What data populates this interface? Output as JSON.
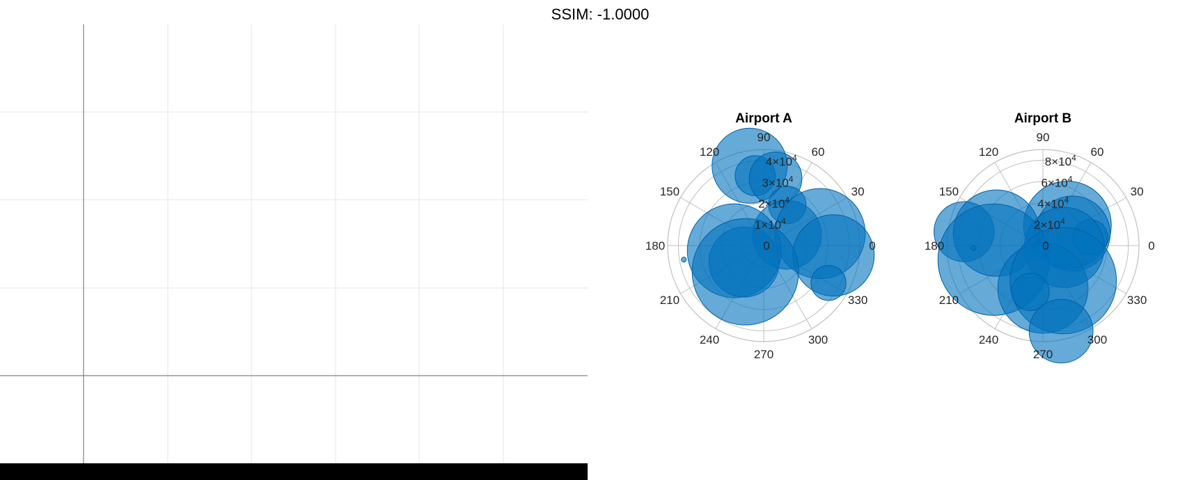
{
  "figure": {
    "suptitle": "SSIM: -1.0000"
  },
  "colors": {
    "bubble_fill": "#0072BD",
    "bubble_edge": "#0060A8",
    "polar_grid": "#BFBFBF",
    "axis_line": "#808080",
    "cartesian_grid": "#E6E6E6",
    "bottom_bar": "#000000"
  },
  "left_panel": {
    "type": "empty-cartesian-axes",
    "grid": true
  },
  "chart_data": [
    {
      "type": "polar-bubble",
      "title": "Airport A",
      "theta_ticks": [
        "0",
        "30",
        "60",
        "90",
        "120",
        "150",
        "180",
        "210",
        "240",
        "270",
        "300",
        "330"
      ],
      "r_ticks": [
        {
          "base": "0",
          "exp": ""
        },
        {
          "base": "1×10",
          "exp": "4"
        },
        {
          "base": "2×10",
          "exp": "4"
        },
        {
          "base": "3×10",
          "exp": "4"
        },
        {
          "base": "4×10",
          "exp": "4"
        }
      ],
      "r_tick_values": [
        0,
        10000,
        20000,
        30000,
        40000
      ],
      "rlim": [
        0,
        45000
      ],
      "grid": true,
      "points": [
        {
          "theta": 100,
          "r": 38000,
          "size": 6
        },
        {
          "theta": 97,
          "r": 33000,
          "size": 3.2
        },
        {
          "theta": 80,
          "r": 32000,
          "size": 4.2
        },
        {
          "theta": 60,
          "r": 22000,
          "size": 3
        },
        {
          "theta": 25,
          "r": 12000,
          "size": 5.5
        },
        {
          "theta": 12,
          "r": 27000,
          "size": 7.2
        },
        {
          "theta": 352,
          "r": 33000,
          "size": 6.5
        },
        {
          "theta": 330,
          "r": 35000,
          "size": 2.8
        },
        {
          "theta": 190,
          "r": 14000,
          "size": 7.5
        },
        {
          "theta": 220,
          "r": 12000,
          "size": 5.6
        },
        {
          "theta": 235,
          "r": 15000,
          "size": 8.5
        },
        {
          "theta": 190,
          "r": 38000,
          "size": 0.4
        }
      ]
    },
    {
      "type": "polar-bubble",
      "title": "Airport B",
      "theta_ticks": [
        "0",
        "30",
        "60",
        "90",
        "120",
        "150",
        "180",
        "210",
        "240",
        "270",
        "300",
        "330"
      ],
      "r_ticks": [
        {
          "base": "0",
          "exp": ""
        },
        {
          "base": "2×10",
          "exp": "4"
        },
        {
          "base": "4×10",
          "exp": "4"
        },
        {
          "base": "6×10",
          "exp": "4"
        },
        {
          "base": "8×10",
          "exp": "4"
        }
      ],
      "r_tick_values": [
        0,
        20000,
        40000,
        60000,
        80000
      ],
      "rlim": [
        0,
        90000
      ],
      "grid": true,
      "points": [
        {
          "theta": 40,
          "r": 30000,
          "size": 7
        },
        {
          "theta": 22,
          "r": 30000,
          "size": 6
        },
        {
          "theta": 10,
          "r": 45000,
          "size": 2.8
        },
        {
          "theta": 355,
          "r": 20000,
          "size": 6.4
        },
        {
          "theta": 170,
          "r": 75000,
          "size": 4.8
        },
        {
          "theta": 165,
          "r": 45000,
          "size": 6.9
        },
        {
          "theta": 196,
          "r": 48000,
          "size": 8.9
        },
        {
          "theta": 270,
          "r": 40000,
          "size": 7.2
        },
        {
          "theta": 300,
          "r": 38000,
          "size": 8.5
        },
        {
          "theta": 255,
          "r": 45000,
          "size": 3
        },
        {
          "theta": 282,
          "r": 82000,
          "size": 5.1
        },
        {
          "theta": 182,
          "r": 65000,
          "size": 0.4
        }
      ]
    }
  ]
}
